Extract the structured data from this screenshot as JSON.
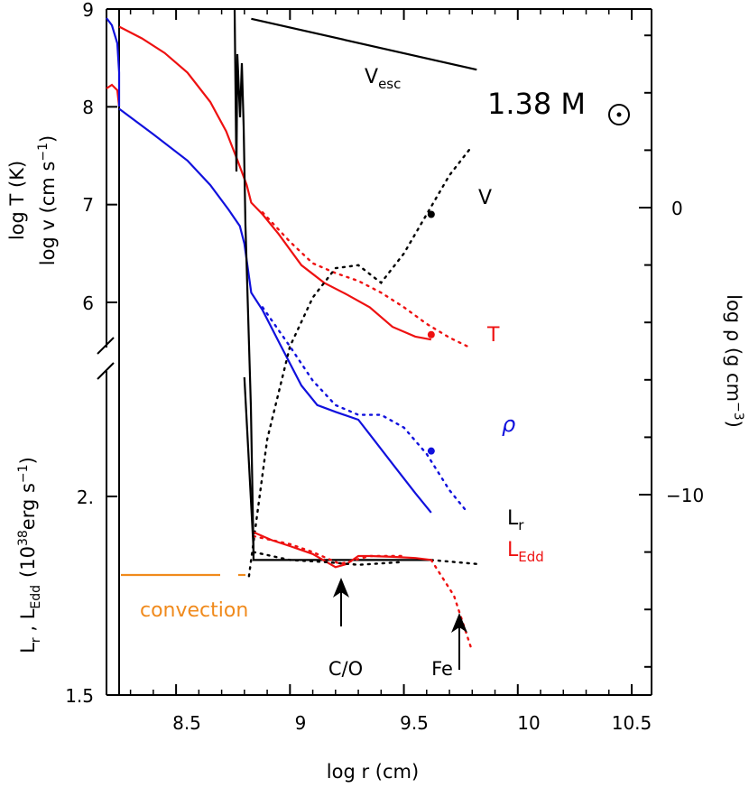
{
  "chart_data": {
    "type": "line",
    "x_axis": {
      "label": "log r (cm)",
      "range": [
        8.2,
        10.5
      ],
      "ticks": [
        "8.5",
        "9",
        "9.5",
        "10",
        "10.5"
      ],
      "tick_values": [
        8.5,
        9,
        9.5,
        10,
        10.5
      ]
    },
    "left_axis_upper": {
      "label_line1": "log T (K)",
      "label_line2": "log v (cm s",
      "label_line2_sup": "−1",
      "label_line2_end": ")",
      "range": [
        5.0,
        9.0
      ],
      "ticks": [
        "6",
        "7",
        "8",
        "9"
      ],
      "tick_values": [
        6,
        7,
        8,
        9
      ]
    },
    "left_axis_lower": {
      "label_main": "L",
      "label_sub_r": "r",
      "label_sep": " , L",
      "label_sub_edd": "Edd",
      "label_units": "(10",
      "label_units_sup": "38",
      "label_units_end": "erg s",
      "label_units_sup2": "−1",
      "label_units_close": ")",
      "range": [
        1.5,
        2.1
      ],
      "ticks": [
        "1.5",
        "2."
      ],
      "tick_values": [
        1.5,
        2.0
      ]
    },
    "right_axis": {
      "label": "log ρ (g cm",
      "label_sup": "−3",
      "label_end": ")",
      "ticks": [
        "0",
        "−10"
      ],
      "tick_values": [
        0,
        -10
      ]
    },
    "annotations": {
      "mass": "1.38 M",
      "v_esc": "V",
      "v_esc_sub": "esc",
      "v_label": "V",
      "t_label": "T",
      "rho_label": "ρ",
      "lr_label": "L",
      "lr_sub": "r",
      "ledd_label": "L",
      "ledd_sub": "Edd",
      "convection": "convection",
      "co_label": "C/O",
      "fe_label": "Fe"
    },
    "colors": {
      "T": "#ee1111",
      "rho": "#1111dd",
      "V": "#000000",
      "L_r": "#000000",
      "L_Edd": "#ee1111",
      "convection": "#f08a1c"
    },
    "series": [
      {
        "name": "T",
        "style": "solid",
        "axis": "upper_left",
        "x": [
          8.25,
          8.35,
          8.45,
          8.55,
          8.65,
          8.72,
          8.77,
          8.81,
          8.83,
          8.88,
          8.95,
          9.05,
          9.15,
          9.25,
          9.35,
          9.45,
          9.55,
          9.62
        ],
        "y": [
          8.82,
          8.7,
          8.55,
          8.35,
          8.05,
          7.75,
          7.45,
          7.2,
          7.02,
          6.9,
          6.7,
          6.38,
          6.2,
          6.08,
          5.95,
          5.75,
          5.65,
          5.62
        ]
      },
      {
        "name": "T (dotted)",
        "style": "dotted",
        "axis": "upper_left",
        "x": [
          8.88,
          9.0,
          9.1,
          9.2,
          9.3,
          9.4,
          9.5,
          9.6,
          9.7,
          9.78
        ],
        "y": [
          6.92,
          6.62,
          6.4,
          6.3,
          6.22,
          6.1,
          5.95,
          5.78,
          5.64,
          5.55
        ]
      },
      {
        "name": "ρ",
        "style": "solid",
        "axis": "upper_left",
        "x": [
          8.25,
          8.4,
          8.55,
          8.65,
          8.73,
          8.78,
          8.8,
          8.83,
          8.88,
          8.95,
          9.05,
          9.12,
          9.2,
          9.3,
          9.35,
          9.45,
          9.55,
          9.62
        ],
        "y": [
          7.98,
          7.72,
          7.45,
          7.2,
          6.95,
          6.78,
          6.6,
          6.1,
          5.92,
          5.6,
          5.15,
          4.95,
          4.88,
          4.8,
          4.65,
          4.35,
          4.05,
          3.85
        ]
      },
      {
        "name": "ρ (dotted)",
        "style": "dotted",
        "axis": "upper_left",
        "x": [
          8.88,
          9.0,
          9.1,
          9.2,
          9.3,
          9.4,
          9.5,
          9.6,
          9.7,
          9.78
        ],
        "y": [
          5.95,
          5.55,
          5.2,
          4.95,
          4.85,
          4.85,
          4.72,
          4.45,
          4.08,
          3.85
        ]
      },
      {
        "name": "V",
        "style": "dotted",
        "axis": "upper_left",
        "x": [
          8.82,
          8.9,
          9.0,
          9.1,
          9.2,
          9.3,
          9.4,
          9.5,
          9.6,
          9.7,
          9.8
        ],
        "y": [
          3.2,
          4.6,
          5.55,
          6.05,
          6.35,
          6.38,
          6.2,
          6.5,
          6.9,
          7.3,
          7.6
        ]
      },
      {
        "name": "V",
        "style": "solid",
        "axis": "upper_left",
        "x": [
          8.83,
          9.82
        ],
        "y": [
          8.9,
          8.38
        ]
      },
      {
        "name": "L",
        "style": "solid",
        "axis": "lower_left",
        "x": [
          8.8,
          8.84,
          8.84,
          9.62
        ],
        "y": [
          2.3,
          1.87,
          1.84,
          1.84
        ]
      },
      {
        "name": "L",
        "style": "solid",
        "axis": "lower_left",
        "x": [
          8.84,
          8.92,
          9.0,
          9.1,
          9.2,
          9.25,
          9.3,
          9.35,
          9.45,
          9.55,
          9.62
        ],
        "y": [
          1.91,
          1.89,
          1.875,
          1.855,
          1.822,
          1.83,
          1.85,
          1.85,
          1.848,
          1.845,
          1.84
        ]
      }
    ],
    "markers": [
      {
        "series": "V",
        "x": 9.62,
        "y": 6.9,
        "color": "#000000"
      },
      {
        "series": "T",
        "x": 9.62,
        "y": 5.67,
        "color": "#ee1111"
      },
      {
        "series": "ρ",
        "x": 9.62,
        "y": 4.48,
        "color": "#1111dd"
      }
    ]
  }
}
